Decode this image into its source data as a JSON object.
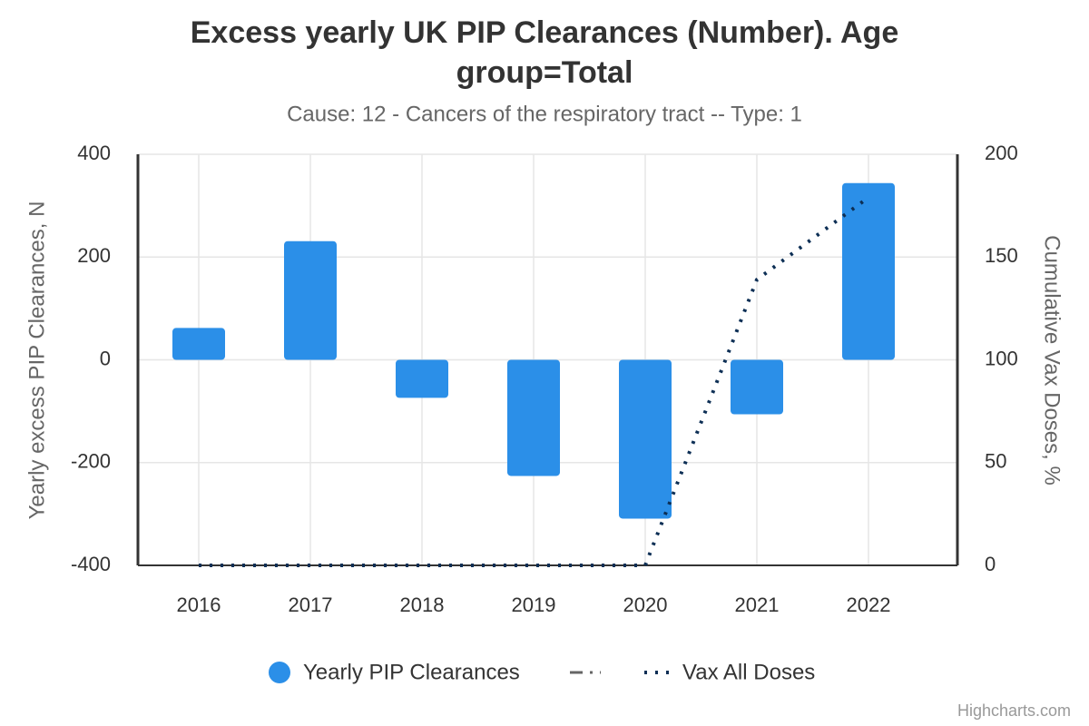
{
  "chart_data": {
    "type": "bar",
    "title": "Excess yearly UK PIP Clearances (Number). Age group=Total",
    "subtitle": "Cause: 12 - Cancers of the respiratory tract -- Type: 1",
    "categories": [
      "2016",
      "2017",
      "2018",
      "2019",
      "2020",
      "2021",
      "2022"
    ],
    "ylabel": "Yearly excess PIP Clearances, N",
    "y2label": "Cumulative Vax Doses, %",
    "ylim": [
      -400,
      400
    ],
    "yticks": [
      -400,
      -200,
      0,
      200,
      400
    ],
    "y2lim": [
      0,
      200
    ],
    "y2ticks": [
      0,
      50,
      100,
      150,
      200
    ],
    "grid": true,
    "series": [
      {
        "name": "Yearly PIP Clearances",
        "type": "bar",
        "color": "#2b8fe8",
        "values": [
          62,
          231,
          -74,
          -226,
          -309,
          -106,
          344
        ]
      },
      {
        "name": "Vax All Doses",
        "type": "line",
        "axis": "y2",
        "color": "#0d2f55",
        "values": [
          0,
          0,
          0,
          0,
          0,
          139,
          179
        ]
      }
    ],
    "credits": "Highcharts.com"
  }
}
